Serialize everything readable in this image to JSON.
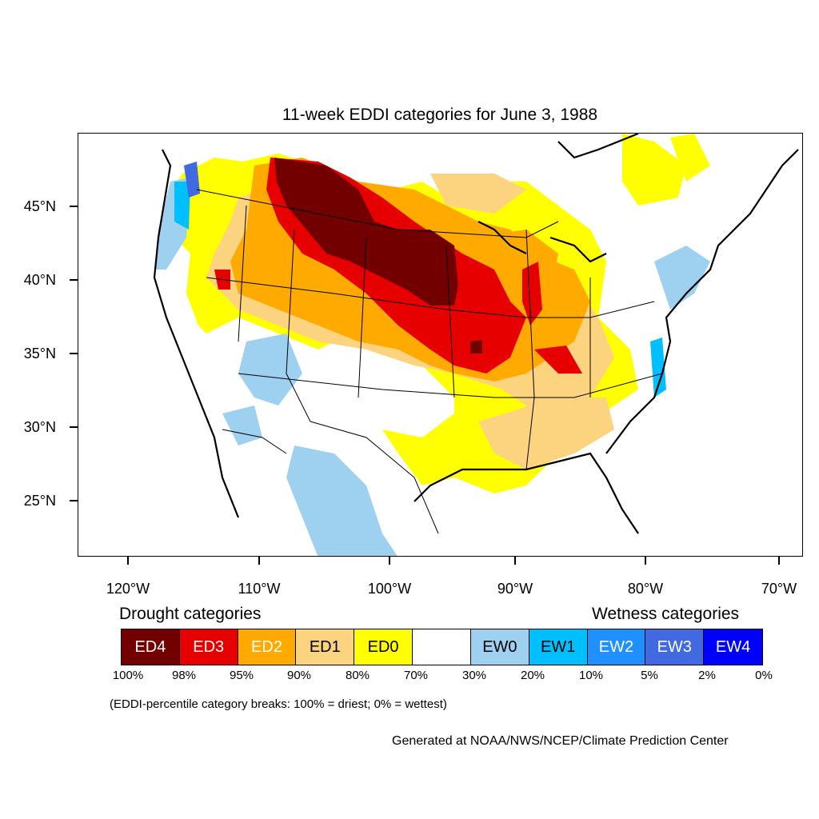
{
  "title": "11-week EDDI categories for June 3, 1988",
  "lat_labels": [
    "45°N",
    "40°N",
    "35°N",
    "30°N",
    "25°N"
  ],
  "lon_labels": [
    "120°W",
    "110°W",
    "100°W",
    "90°W",
    "80°W",
    "70°W"
  ],
  "legend": {
    "drought_title": "Drought categories",
    "wetness_title": "Wetness categories",
    "categories": [
      {
        "label": "ED4",
        "color": "#730000",
        "text_color": "#ffffff"
      },
      {
        "label": "ED3",
        "color": "#e60000",
        "text_color": "#ffffff"
      },
      {
        "label": "ED2",
        "color": "#ffaa00",
        "text_color": "#ffffff"
      },
      {
        "label": "ED1",
        "color": "#fcd37f",
        "text_color": "#000000"
      },
      {
        "label": "ED0",
        "color": "#ffff00",
        "text_color": "#000000"
      },
      {
        "label": "",
        "color": "#ffffff",
        "text_color": "#000000"
      },
      {
        "label": "EW0",
        "color": "#9ed0f0",
        "text_color": "#000000"
      },
      {
        "label": "EW1",
        "color": "#00bfff",
        "text_color": "#000000"
      },
      {
        "label": "EW2",
        "color": "#1e90ff",
        "text_color": "#ffffff"
      },
      {
        "label": "EW3",
        "color": "#4169e1",
        "text_color": "#ffffff"
      },
      {
        "label": "EW4",
        "color": "#0000ff",
        "text_color": "#ffffff"
      }
    ],
    "percentiles": [
      "100%",
      "98%",
      "95%",
      "90%",
      "80%",
      "70%",
      "30%",
      "20%",
      "10%",
      "5%",
      "2%",
      "0%"
    ]
  },
  "note": "(EDDI-percentile category breaks: 100% = driest; 0% = wettest)",
  "credit": "Generated at NOAA/NWS/NCEP/Climate Prediction Center"
}
